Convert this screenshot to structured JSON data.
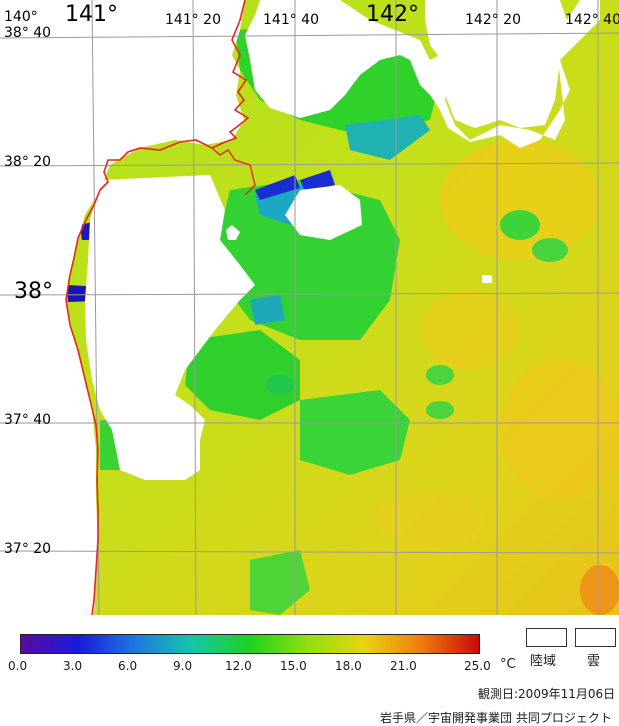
{
  "map": {
    "lon_labels": [
      "140°",
      "141°",
      "141° 20",
      "141° 40",
      "142°",
      "142° 20",
      "142° 40"
    ],
    "lat_labels": [
      "38° 40",
      "38° 20",
      "38°",
      "37° 40",
      "37° 20"
    ],
    "colors": {
      "coast": "#e8261e",
      "grid": "#9a9a9a",
      "land_cloud": "#ffffff"
    }
  },
  "legend": {
    "colorbar_ticks": [
      "0.0",
      "3.0",
      "6.0",
      "9.0",
      "12.0",
      "15.0",
      "18.0",
      "21.0",
      "25.0"
    ],
    "unit": "°C",
    "land_label": "陸域",
    "cloud_label": "雲",
    "gradient_stops": [
      "#5a0aa0",
      "#1a1adb",
      "#1f78e0",
      "#16c6a8",
      "#1fd21f",
      "#8ee00e",
      "#e9d412",
      "#f07a0e",
      "#c80a0a"
    ]
  },
  "footer": {
    "observation_date": "観測日:2009年11月06日",
    "credit": "岩手県／宇宙開発事業団 共同プロジェクト"
  }
}
